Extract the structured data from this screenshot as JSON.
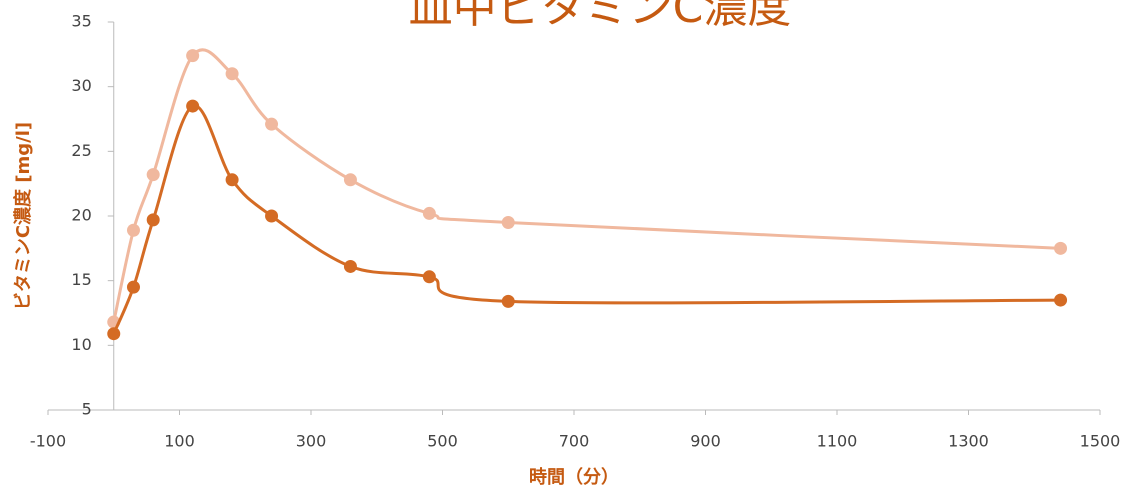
{
  "chart_data": {
    "type": "scatter",
    "title": "血中ビタミンC濃度",
    "x_label": "時間（分）",
    "y_label": "ビタミンC濃度 [mg/l]",
    "x": [
      0,
      30,
      60,
      120,
      180,
      240,
      360,
      480,
      600,
      1440
    ],
    "series": [
      {
        "color": "#f0b89e",
        "values": [
          11.8,
          18.9,
          23.2,
          32.4,
          31.0,
          27.1,
          22.8,
          20.2,
          19.5,
          17.5
        ]
      },
      {
        "color": "#d46b24",
        "values": [
          10.9,
          14.5,
          19.7,
          28.5,
          22.8,
          20.0,
          16.1,
          15.3,
          13.4,
          13.5
        ]
      }
    ],
    "xlim": [
      -100,
      1500
    ],
    "xticks": [
      -100,
      100,
      300,
      500,
      700,
      900,
      1100,
      1300,
      1500
    ],
    "ylim": [
      5,
      35
    ],
    "yticks": [
      5,
      10,
      15,
      20,
      25,
      30,
      35
    ],
    "smooth": true
  }
}
